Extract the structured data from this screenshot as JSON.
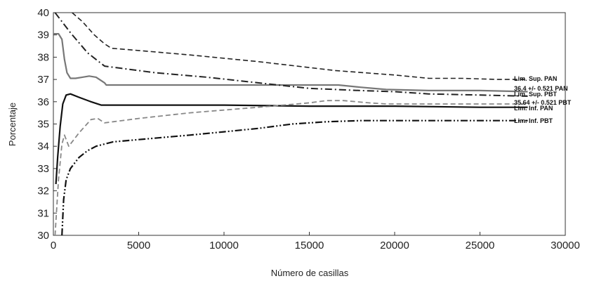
{
  "chart_data": {
    "type": "line",
    "title": "",
    "xlabel": "Número de casillas",
    "ylabel": "Porcentaje",
    "xlim": [
      0,
      30000
    ],
    "ylim": [
      30,
      40
    ],
    "xticks": [
      0,
      5000,
      10000,
      15000,
      20000,
      25000,
      30000
    ],
    "yticks": [
      30,
      31,
      32,
      33,
      34,
      35,
      36,
      37,
      38,
      39,
      40
    ],
    "grid": false,
    "legend": "none",
    "series": [
      {
        "name": "Lim. Sup. PAN",
        "style": "dashed",
        "color": "#222222",
        "x": [
          1100,
          1700,
          2400,
          3000,
          3400,
          5000,
          8000,
          12000,
          16500,
          20000,
          22000,
          24000,
          26000,
          27800
        ],
        "y": [
          40.0,
          39.6,
          39.0,
          38.6,
          38.4,
          38.3,
          38.1,
          37.8,
          37.4,
          37.2,
          37.05,
          37.05,
          37.0,
          37.0
        ]
      },
      {
        "name": "36.4 +/- 0.521 PAN",
        "style": "solid",
        "color": "#777777",
        "x": [
          0,
          300,
          500,
          650,
          800,
          1000,
          1300,
          1700,
          2100,
          2500,
          2800,
          3000,
          3100,
          3500,
          6000,
          10000,
          15000,
          16700,
          18000,
          19500,
          22000,
          25000,
          27800
        ],
        "y": [
          39.05,
          39.05,
          38.8,
          37.9,
          37.3,
          37.05,
          37.05,
          37.1,
          37.15,
          37.1,
          36.95,
          36.85,
          36.75,
          36.75,
          36.75,
          36.75,
          36.75,
          36.75,
          36.65,
          36.55,
          36.5,
          36.5,
          36.45
        ]
      },
      {
        "name": "Lim. Sup. PBT",
        "style": "dash-dot",
        "color": "#222222",
        "x": [
          100,
          1000,
          2000,
          3000,
          4000,
          6000,
          9000,
          12000,
          15000,
          18000,
          20000,
          22000,
          25000,
          27800
        ],
        "y": [
          40.0,
          39.1,
          38.2,
          37.6,
          37.5,
          37.3,
          37.1,
          36.85,
          36.6,
          36.5,
          36.45,
          36.35,
          36.3,
          36.25
        ]
      },
      {
        "name": "35.64 +/- 0.521 PBT",
        "style": "solid",
        "color": "#111111",
        "x": [
          150,
          250,
          400,
          550,
          750,
          1000,
          1500,
          2200,
          2800,
          3100,
          3500,
          5000,
          10000,
          15000,
          20000,
          25000,
          27800
        ],
        "y": [
          32.3,
          33.5,
          34.9,
          35.9,
          36.3,
          36.35,
          36.2,
          36.0,
          35.85,
          35.85,
          35.85,
          35.85,
          35.85,
          35.8,
          35.8,
          35.75,
          35.75
        ]
      },
      {
        "name": "Lim. Inf. PAN",
        "style": "dashed",
        "color": "#888888",
        "x": [
          100,
          300,
          500,
          650,
          900,
          1500,
          2200,
          2600,
          3000,
          3500,
          5000,
          8000,
          12000,
          15000,
          16000,
          17000,
          18500,
          19500,
          22000,
          25000,
          27800
        ],
        "y": [
          30.0,
          32.5,
          34.1,
          34.5,
          34.0,
          34.6,
          35.2,
          35.25,
          35.05,
          35.1,
          35.25,
          35.5,
          35.75,
          35.95,
          36.05,
          36.05,
          35.95,
          35.9,
          35.9,
          35.9,
          35.9
        ]
      },
      {
        "name": "Lim. Inf. PBT",
        "style": "dash-dot-dot",
        "color": "#111111",
        "x": [
          500,
          600,
          750,
          1000,
          1500,
          2000,
          2500,
          3000,
          3500,
          5000,
          8000,
          10000,
          12000,
          14000,
          16000,
          18000,
          20000,
          25000,
          27800
        ],
        "y": [
          30.0,
          31.6,
          32.5,
          33.0,
          33.5,
          33.8,
          34.0,
          34.1,
          34.2,
          34.3,
          34.5,
          34.65,
          34.8,
          35.0,
          35.1,
          35.15,
          35.15,
          35.15,
          35.15
        ]
      }
    ]
  }
}
